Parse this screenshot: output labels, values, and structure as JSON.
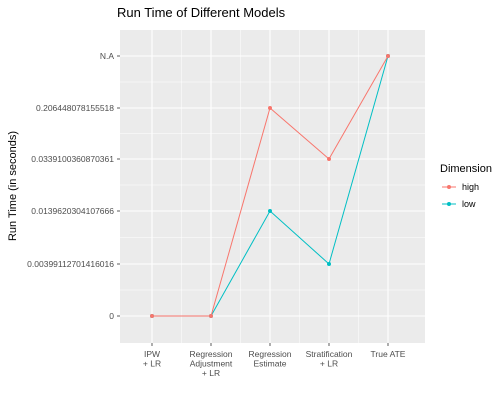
{
  "chart_data": {
    "type": "line",
    "title": "Run Time of Different Models",
    "xlabel": "",
    "ylabel": "Run Time (in seconds)",
    "categories": [
      [
        "IPW",
        "+ LR"
      ],
      [
        "Regression",
        "Adjustment",
        "+ LR"
      ],
      [
        "Regression",
        "Estimate"
      ],
      [
        "Stratification",
        "+ LR"
      ],
      [
        "True ATE"
      ]
    ],
    "y_ticks": [
      "0",
      "0.00399112701416016",
      "0.0139620304107666",
      "0.0339100360870361",
      "0.206448078155518",
      "N.A"
    ],
    "series": [
      {
        "name": "high",
        "color": "#F8766D",
        "values": [
          "0",
          "0",
          "0.206448078155518",
          "0.0339100360870361",
          "N.A"
        ]
      },
      {
        "name": "low",
        "color": "#00BFC4",
        "values": [
          "0",
          "0",
          "0.0139620304107666",
          "0.00399112701416016",
          "N.A"
        ]
      }
    ],
    "legend": {
      "title": "Dimension",
      "position": "right"
    },
    "grid": true,
    "panel_background": "#EBEBEB",
    "grid_color": "#FFFFFF"
  }
}
